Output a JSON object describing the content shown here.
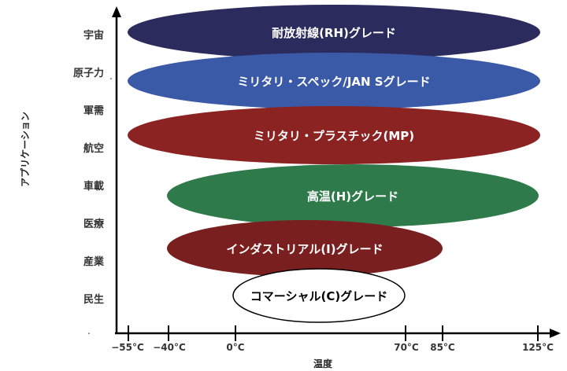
{
  "diagram": {
    "y_axis_title": "アプリケーション",
    "x_axis_title": "温度",
    "applications": [
      "宇宙",
      "原子力",
      "軍需",
      "航空",
      "車載",
      "医療",
      "産業",
      "民生"
    ],
    "temperature_ticks": [
      "−55°C",
      "−40°C",
      "0°C",
      "70°C",
      "85°C",
      "125°C"
    ],
    "stray_marks": [
      ".",
      "."
    ],
    "grades": [
      {
        "label": "耐放射線(RH)グレード",
        "color": "#2b2b5e",
        "text_color": "#ffffff",
        "range": [
          "−55°C",
          "125°C"
        ]
      },
      {
        "label": "ミリタリ・スペック/JAN Sグレード",
        "color": "#3a5aa8",
        "text_color": "#ffffff",
        "range": [
          "−55°C",
          "125°C"
        ]
      },
      {
        "label": "ミリタリ・プラスチック(MP)",
        "color": "#8b2323",
        "text_color": "#ffffff",
        "range": [
          "−55°C",
          "125°C"
        ]
      },
      {
        "label": "高温(H)グレード",
        "color": "#2f7a4a",
        "text_color": "#ffffff",
        "range": [
          "−40°C",
          "125°C"
        ]
      },
      {
        "label": "インダストリアル(I)グレード",
        "color": "#7a1f1f",
        "text_color": "#ffffff",
        "range": [
          "−40°C",
          "85°C"
        ]
      },
      {
        "label": "コマーシャル(C)グレード",
        "color": "#ffffff",
        "text_color": "#000000",
        "range": [
          "0°C",
          "70°C"
        ]
      }
    ],
    "axis_color": "#000000"
  }
}
